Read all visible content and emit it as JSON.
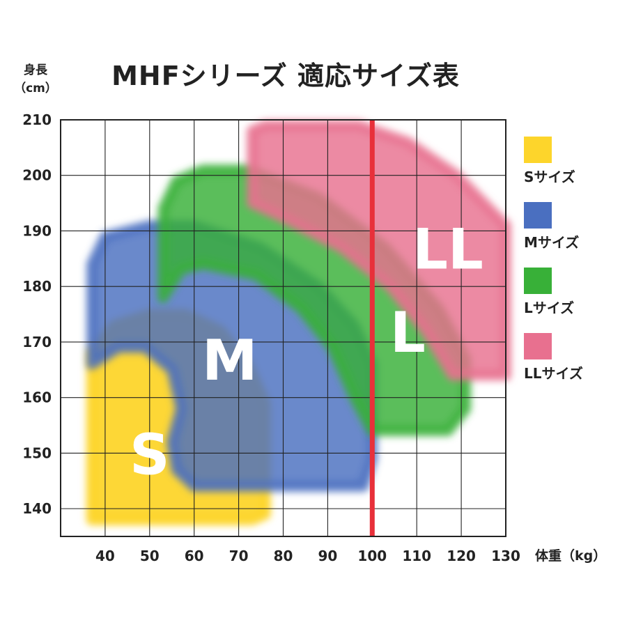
{
  "header": {
    "title": "MHFシリーズ 適応サイズ表",
    "y_axis_label_line1": "身長",
    "y_axis_label_line2": "（cm）",
    "x_axis_label": "体重（kg）"
  },
  "chart_data": {
    "type": "area",
    "title": "MHFシリーズ 適応サイズ表",
    "xlabel": "体重（kg）",
    "ylabel": "身長（cm）",
    "xlim": [
      30,
      130
    ],
    "ylim": [
      135,
      210
    ],
    "x_ticks": [
      40,
      50,
      60,
      70,
      80,
      90,
      100,
      110,
      120,
      130
    ],
    "y_ticks": [
      140,
      150,
      160,
      170,
      180,
      190,
      200,
      210
    ],
    "grid": true,
    "legend_position": "right",
    "reference_line": {
      "axis": "x",
      "value": 100,
      "color": "#e8303a"
    },
    "series": [
      {
        "name": "Sサイズ",
        "label": "S",
        "color": "#fdd52b",
        "regions": [
          [
            37,
            138
          ],
          [
            37,
            168
          ],
          [
            42,
            173
          ],
          [
            50,
            175
          ],
          [
            58,
            175
          ],
          [
            66,
            172
          ],
          [
            72,
            166
          ],
          [
            76,
            159
          ],
          [
            76,
            139
          ],
          [
            73,
            138
          ]
        ],
        "label_at": [
          50,
          149
        ]
      },
      {
        "name": "Mサイズ",
        "label": "M",
        "color": "#4a6fc0",
        "regions": [
          [
            37,
            166
          ],
          [
            37,
            184
          ],
          [
            40,
            189
          ],
          [
            50,
            191
          ],
          [
            60,
            191
          ],
          [
            75,
            187
          ],
          [
            88,
            180
          ],
          [
            96,
            173
          ],
          [
            100,
            166
          ],
          [
            100,
            149
          ],
          [
            98,
            144
          ],
          [
            60,
            144
          ],
          [
            56,
            147
          ],
          [
            55,
            152
          ],
          [
            57,
            158
          ],
          [
            55,
            165
          ],
          [
            49,
            169
          ],
          [
            43,
            169
          ]
        ],
        "label_at": [
          68,
          166
        ]
      },
      {
        "name": "Lサイズ",
        "label": "L",
        "color": "#38b038",
        "regions": [
          [
            53,
            178
          ],
          [
            53,
            194
          ],
          [
            56,
            199
          ],
          [
            62,
            201
          ],
          [
            72,
            201
          ],
          [
            88,
            196
          ],
          [
            103,
            187
          ],
          [
            115,
            176
          ],
          [
            121,
            167
          ],
          [
            121,
            158
          ],
          [
            117,
            154
          ],
          [
            100,
            154
          ],
          [
            96,
            160
          ],
          [
            91,
            169
          ],
          [
            84,
            176
          ],
          [
            74,
            182
          ],
          [
            62,
            184
          ],
          [
            57,
            183
          ]
        ],
        "label_at": [
          108,
          171
        ]
      },
      {
        "name": "LLサイズ",
        "label": "LL",
        "color": "#e8708f",
        "regions": [
          [
            73,
            195
          ],
          [
            73,
            208
          ],
          [
            76,
            209
          ],
          [
            97,
            209
          ],
          [
            108,
            206
          ],
          [
            119,
            200
          ],
          [
            130,
            191
          ],
          [
            130,
            164
          ],
          [
            118,
            164
          ],
          [
            112,
            172
          ],
          [
            104,
            180
          ],
          [
            93,
            187
          ],
          [
            81,
            192
          ]
        ],
        "label_at": [
          117,
          186
        ]
      }
    ]
  }
}
